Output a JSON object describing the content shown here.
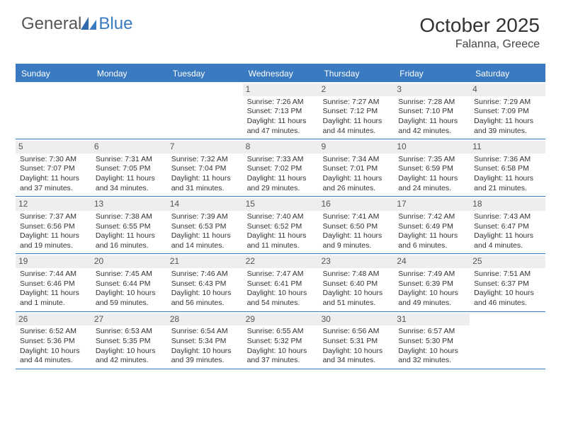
{
  "logo": {
    "word1": "General",
    "word2": "Blue"
  },
  "title": "October 2025",
  "location": "Falanna, Greece",
  "colors": {
    "header_bar": "#3a7ac0",
    "daynum_bg": "#eceef0",
    "text": "#333333",
    "page_bg": "#ffffff",
    "logo_gray": "#555555",
    "logo_blue": "#3a7ac0",
    "header_text": "#ffffff"
  },
  "dayHeaders": [
    "Sunday",
    "Monday",
    "Tuesday",
    "Wednesday",
    "Thursday",
    "Friday",
    "Saturday"
  ],
  "weeks": [
    [
      {
        "empty": true
      },
      {
        "empty": true
      },
      {
        "empty": true
      },
      {
        "day": "1",
        "sunrise": "Sunrise: 7:26 AM",
        "sunset": "Sunset: 7:13 PM",
        "daylight1": "Daylight: 11 hours",
        "daylight2": "and 47 minutes."
      },
      {
        "day": "2",
        "sunrise": "Sunrise: 7:27 AM",
        "sunset": "Sunset: 7:12 PM",
        "daylight1": "Daylight: 11 hours",
        "daylight2": "and 44 minutes."
      },
      {
        "day": "3",
        "sunrise": "Sunrise: 7:28 AM",
        "sunset": "Sunset: 7:10 PM",
        "daylight1": "Daylight: 11 hours",
        "daylight2": "and 42 minutes."
      },
      {
        "day": "4",
        "sunrise": "Sunrise: 7:29 AM",
        "sunset": "Sunset: 7:09 PM",
        "daylight1": "Daylight: 11 hours",
        "daylight2": "and 39 minutes."
      }
    ],
    [
      {
        "day": "5",
        "sunrise": "Sunrise: 7:30 AM",
        "sunset": "Sunset: 7:07 PM",
        "daylight1": "Daylight: 11 hours",
        "daylight2": "and 37 minutes."
      },
      {
        "day": "6",
        "sunrise": "Sunrise: 7:31 AM",
        "sunset": "Sunset: 7:05 PM",
        "daylight1": "Daylight: 11 hours",
        "daylight2": "and 34 minutes."
      },
      {
        "day": "7",
        "sunrise": "Sunrise: 7:32 AM",
        "sunset": "Sunset: 7:04 PM",
        "daylight1": "Daylight: 11 hours",
        "daylight2": "and 31 minutes."
      },
      {
        "day": "8",
        "sunrise": "Sunrise: 7:33 AM",
        "sunset": "Sunset: 7:02 PM",
        "daylight1": "Daylight: 11 hours",
        "daylight2": "and 29 minutes."
      },
      {
        "day": "9",
        "sunrise": "Sunrise: 7:34 AM",
        "sunset": "Sunset: 7:01 PM",
        "daylight1": "Daylight: 11 hours",
        "daylight2": "and 26 minutes."
      },
      {
        "day": "10",
        "sunrise": "Sunrise: 7:35 AM",
        "sunset": "Sunset: 6:59 PM",
        "daylight1": "Daylight: 11 hours",
        "daylight2": "and 24 minutes."
      },
      {
        "day": "11",
        "sunrise": "Sunrise: 7:36 AM",
        "sunset": "Sunset: 6:58 PM",
        "daylight1": "Daylight: 11 hours",
        "daylight2": "and 21 minutes."
      }
    ],
    [
      {
        "day": "12",
        "sunrise": "Sunrise: 7:37 AM",
        "sunset": "Sunset: 6:56 PM",
        "daylight1": "Daylight: 11 hours",
        "daylight2": "and 19 minutes."
      },
      {
        "day": "13",
        "sunrise": "Sunrise: 7:38 AM",
        "sunset": "Sunset: 6:55 PM",
        "daylight1": "Daylight: 11 hours",
        "daylight2": "and 16 minutes."
      },
      {
        "day": "14",
        "sunrise": "Sunrise: 7:39 AM",
        "sunset": "Sunset: 6:53 PM",
        "daylight1": "Daylight: 11 hours",
        "daylight2": "and 14 minutes."
      },
      {
        "day": "15",
        "sunrise": "Sunrise: 7:40 AM",
        "sunset": "Sunset: 6:52 PM",
        "daylight1": "Daylight: 11 hours",
        "daylight2": "and 11 minutes."
      },
      {
        "day": "16",
        "sunrise": "Sunrise: 7:41 AM",
        "sunset": "Sunset: 6:50 PM",
        "daylight1": "Daylight: 11 hours",
        "daylight2": "and 9 minutes."
      },
      {
        "day": "17",
        "sunrise": "Sunrise: 7:42 AM",
        "sunset": "Sunset: 6:49 PM",
        "daylight1": "Daylight: 11 hours",
        "daylight2": "and 6 minutes."
      },
      {
        "day": "18",
        "sunrise": "Sunrise: 7:43 AM",
        "sunset": "Sunset: 6:47 PM",
        "daylight1": "Daylight: 11 hours",
        "daylight2": "and 4 minutes."
      }
    ],
    [
      {
        "day": "19",
        "sunrise": "Sunrise: 7:44 AM",
        "sunset": "Sunset: 6:46 PM",
        "daylight1": "Daylight: 11 hours",
        "daylight2": "and 1 minute."
      },
      {
        "day": "20",
        "sunrise": "Sunrise: 7:45 AM",
        "sunset": "Sunset: 6:44 PM",
        "daylight1": "Daylight: 10 hours",
        "daylight2": "and 59 minutes."
      },
      {
        "day": "21",
        "sunrise": "Sunrise: 7:46 AM",
        "sunset": "Sunset: 6:43 PM",
        "daylight1": "Daylight: 10 hours",
        "daylight2": "and 56 minutes."
      },
      {
        "day": "22",
        "sunrise": "Sunrise: 7:47 AM",
        "sunset": "Sunset: 6:41 PM",
        "daylight1": "Daylight: 10 hours",
        "daylight2": "and 54 minutes."
      },
      {
        "day": "23",
        "sunrise": "Sunrise: 7:48 AM",
        "sunset": "Sunset: 6:40 PM",
        "daylight1": "Daylight: 10 hours",
        "daylight2": "and 51 minutes."
      },
      {
        "day": "24",
        "sunrise": "Sunrise: 7:49 AM",
        "sunset": "Sunset: 6:39 PM",
        "daylight1": "Daylight: 10 hours",
        "daylight2": "and 49 minutes."
      },
      {
        "day": "25",
        "sunrise": "Sunrise: 7:51 AM",
        "sunset": "Sunset: 6:37 PM",
        "daylight1": "Daylight: 10 hours",
        "daylight2": "and 46 minutes."
      }
    ],
    [
      {
        "day": "26",
        "sunrise": "Sunrise: 6:52 AM",
        "sunset": "Sunset: 5:36 PM",
        "daylight1": "Daylight: 10 hours",
        "daylight2": "and 44 minutes."
      },
      {
        "day": "27",
        "sunrise": "Sunrise: 6:53 AM",
        "sunset": "Sunset: 5:35 PM",
        "daylight1": "Daylight: 10 hours",
        "daylight2": "and 42 minutes."
      },
      {
        "day": "28",
        "sunrise": "Sunrise: 6:54 AM",
        "sunset": "Sunset: 5:34 PM",
        "daylight1": "Daylight: 10 hours",
        "daylight2": "and 39 minutes."
      },
      {
        "day": "29",
        "sunrise": "Sunrise: 6:55 AM",
        "sunset": "Sunset: 5:32 PM",
        "daylight1": "Daylight: 10 hours",
        "daylight2": "and 37 minutes."
      },
      {
        "day": "30",
        "sunrise": "Sunrise: 6:56 AM",
        "sunset": "Sunset: 5:31 PM",
        "daylight1": "Daylight: 10 hours",
        "daylight2": "and 34 minutes."
      },
      {
        "day": "31",
        "sunrise": "Sunrise: 6:57 AM",
        "sunset": "Sunset: 5:30 PM",
        "daylight1": "Daylight: 10 hours",
        "daylight2": "and 32 minutes."
      },
      {
        "empty": true
      }
    ]
  ]
}
